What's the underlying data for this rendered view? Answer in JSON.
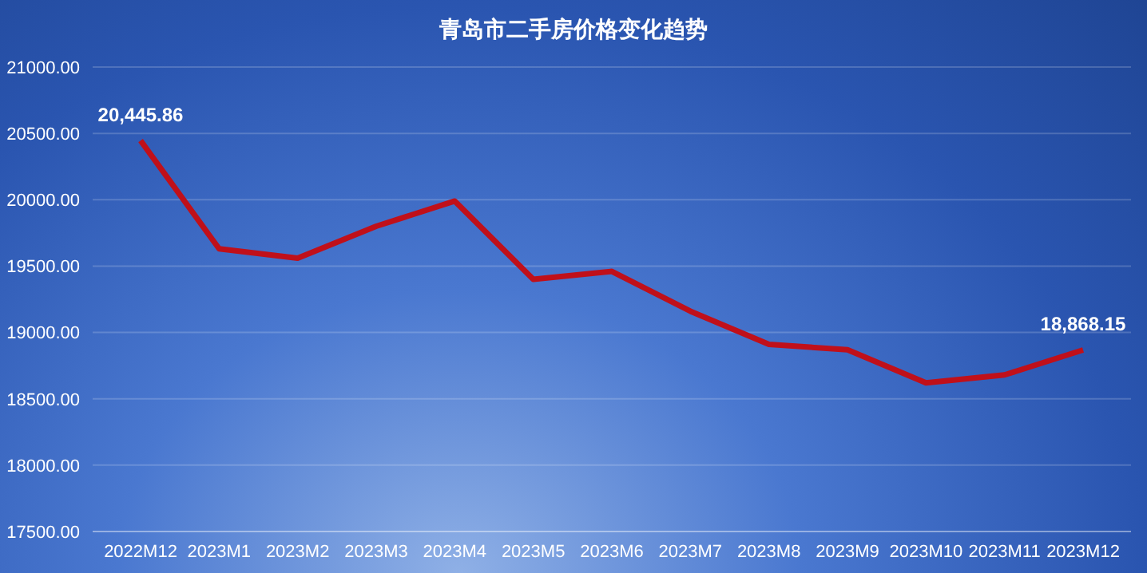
{
  "chart_data": {
    "type": "line",
    "title": "青岛市二手房价格变化趋势",
    "categories": [
      "2022M12",
      "2023M1",
      "2023M2",
      "2023M3",
      "2023M4",
      "2023M5",
      "2023M6",
      "2023M7",
      "2023M8",
      "2023M9",
      "2023M10",
      "2023M11",
      "2023M12"
    ],
    "series": [
      {
        "color": "#c0101a",
        "values": [
          20445.86,
          19630,
          19560,
          19800,
          19990,
          19400,
          19460,
          19160,
          18910,
          18870,
          18620,
          18680,
          18868.15
        ],
        "value_labels": [
          "20,445.86",
          null,
          null,
          null,
          null,
          null,
          null,
          null,
          null,
          null,
          null,
          null,
          "18,868.15"
        ]
      }
    ],
    "ylim": [
      17500,
      21000
    ],
    "yticks": [
      {
        "value": 17500,
        "label": "17500.00"
      },
      {
        "value": 18000,
        "label": "18000.00"
      },
      {
        "value": 18500,
        "label": "18500.00"
      },
      {
        "value": 19000,
        "label": "19000.00"
      },
      {
        "value": 19500,
        "label": "19500.00"
      },
      {
        "value": 20000,
        "label": "20000.00"
      },
      {
        "value": 20500,
        "label": "20500.00"
      },
      {
        "value": 21000,
        "label": "21000.00"
      }
    ],
    "grid": "y",
    "legend": false,
    "marker": "none",
    "line_style": "solid"
  }
}
